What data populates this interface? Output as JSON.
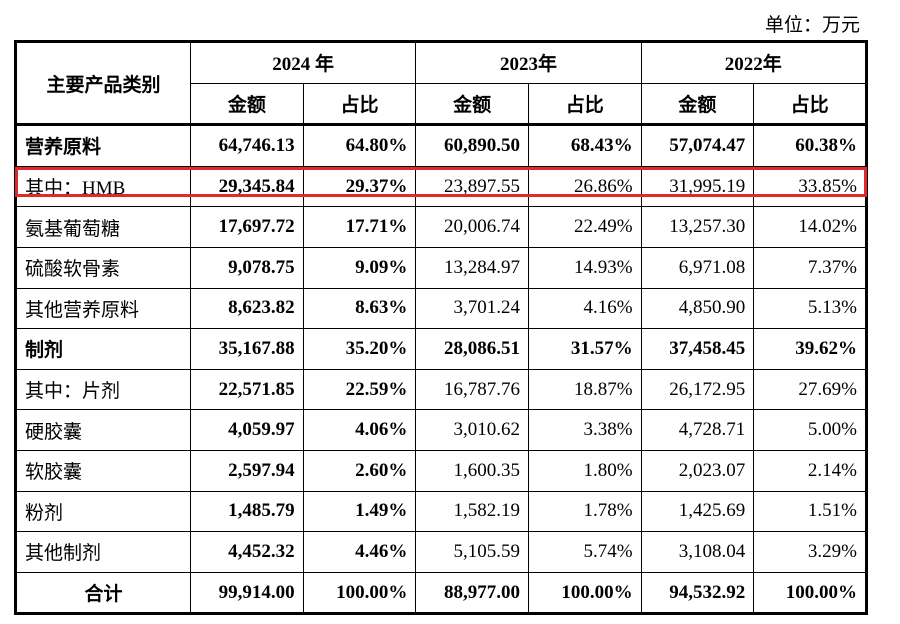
{
  "unit_label": "单位：万元",
  "headers": {
    "category": "主要产品类别",
    "years": [
      "2024 年",
      "2023年",
      "2022年"
    ],
    "amount": "金额",
    "ratio": "占比"
  },
  "rows": [
    {
      "label": "营养原料",
      "c": [
        "64,746.13",
        "64.80%",
        "60,890.50",
        "68.43%",
        "57,074.47",
        "60.38%"
      ]
    },
    {
      "label": "其中：HMB",
      "c": [
        "29,345.84",
        "29.37%",
        "23,897.55",
        "26.86%",
        "31,995.19",
        "33.85%"
      ]
    },
    {
      "label": "氨基葡萄糖",
      "c": [
        "17,697.72",
        "17.71%",
        "20,006.74",
        "22.49%",
        "13,257.30",
        "14.02%"
      ]
    },
    {
      "label": "硫酸软骨素",
      "c": [
        "9,078.75",
        "9.09%",
        "13,284.97",
        "14.93%",
        "6,971.08",
        "7.37%"
      ]
    },
    {
      "label": "其他营养原料",
      "c": [
        "8,623.82",
        "8.63%",
        "3,701.24",
        "4.16%",
        "4,850.90",
        "5.13%"
      ]
    },
    {
      "label": "制剂",
      "c": [
        "35,167.88",
        "35.20%",
        "28,086.51",
        "31.57%",
        "37,458.45",
        "39.62%"
      ]
    },
    {
      "label": "其中：片剂",
      "c": [
        "22,571.85",
        "22.59%",
        "16,787.76",
        "18.87%",
        "26,172.95",
        "27.69%"
      ]
    },
    {
      "label": "硬胶囊",
      "c": [
        "4,059.97",
        "4.06%",
        "3,010.62",
        "3.38%",
        "4,728.71",
        "5.00%"
      ]
    },
    {
      "label": "软胶囊",
      "c": [
        "2,597.94",
        "2.60%",
        "1,600.35",
        "1.80%",
        "2,023.07",
        "2.14%"
      ]
    },
    {
      "label": "粉剂",
      "c": [
        "1,485.79",
        "1.49%",
        "1,582.19",
        "1.78%",
        "1,425.69",
        "1.51%"
      ]
    },
    {
      "label": "其他制剂",
      "c": [
        "4,452.32",
        "4.46%",
        "5,105.59",
        "5.74%",
        "3,108.04",
        "3.29%"
      ]
    },
    {
      "label": "合计",
      "c": [
        "99,914.00",
        "100.00%",
        "88,977.00",
        "100.00%",
        "94,532.92",
        "100.00%"
      ]
    }
  ],
  "highlight_color": "#e02a2a"
}
